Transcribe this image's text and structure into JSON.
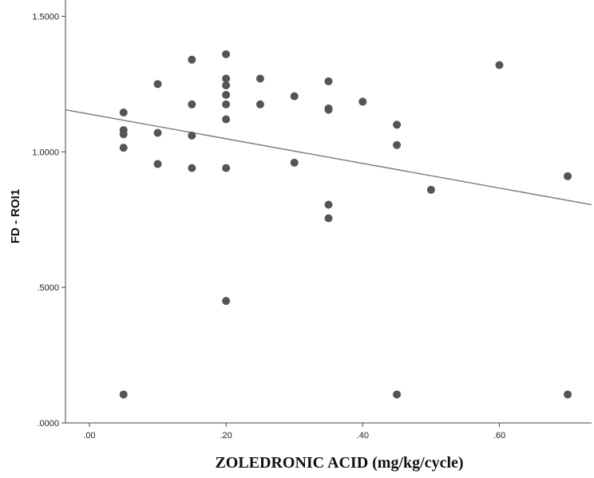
{
  "chart_data": {
    "type": "scatter",
    "title": "",
    "xlabel": "ZOLEDRONIC ACID (mg/kg/cycle)",
    "ylabel": "FD - ROI1",
    "xlim": [
      -0.035,
      0.735
    ],
    "ylim": [
      0.0,
      1.56
    ],
    "x_ticks": [
      0.0,
      0.2,
      0.4,
      0.6
    ],
    "x_tick_labels": [
      ".00",
      ".20",
      ".40",
      ".60"
    ],
    "y_ticks": [
      0.0,
      0.5,
      1.0,
      1.5
    ],
    "y_tick_labels": [
      ".0000",
      ".5000",
      "1.0000",
      "1.5000"
    ],
    "grid": false,
    "fit_line": {
      "x": [
        -0.035,
        0.735
      ],
      "y": [
        1.155,
        0.805
      ]
    },
    "points": [
      {
        "x": 0.05,
        "y": 1.145
      },
      {
        "x": 0.05,
        "y": 1.08
      },
      {
        "x": 0.05,
        "y": 1.065
      },
      {
        "x": 0.05,
        "y": 1.015
      },
      {
        "x": 0.05,
        "y": 0.105
      },
      {
        "x": 0.1,
        "y": 1.25
      },
      {
        "x": 0.1,
        "y": 1.07
      },
      {
        "x": 0.1,
        "y": 0.955
      },
      {
        "x": 0.15,
        "y": 1.34
      },
      {
        "x": 0.15,
        "y": 1.175
      },
      {
        "x": 0.15,
        "y": 1.06
      },
      {
        "x": 0.15,
        "y": 0.94
      },
      {
        "x": 0.2,
        "y": 1.36
      },
      {
        "x": 0.2,
        "y": 1.27
      },
      {
        "x": 0.2,
        "y": 1.245
      },
      {
        "x": 0.2,
        "y": 1.21
      },
      {
        "x": 0.2,
        "y": 1.175
      },
      {
        "x": 0.2,
        "y": 1.12
      },
      {
        "x": 0.2,
        "y": 0.94
      },
      {
        "x": 0.2,
        "y": 0.45
      },
      {
        "x": 0.25,
        "y": 1.27
      },
      {
        "x": 0.25,
        "y": 1.175
      },
      {
        "x": 0.3,
        "y": 1.205
      },
      {
        "x": 0.3,
        "y": 0.96
      },
      {
        "x": 0.35,
        "y": 1.26
      },
      {
        "x": 0.35,
        "y": 1.16
      },
      {
        "x": 0.35,
        "y": 1.155
      },
      {
        "x": 0.35,
        "y": 0.805
      },
      {
        "x": 0.35,
        "y": 0.755
      },
      {
        "x": 0.4,
        "y": 1.185
      },
      {
        "x": 0.45,
        "y": 1.1
      },
      {
        "x": 0.45,
        "y": 1.025
      },
      {
        "x": 0.45,
        "y": 0.105
      },
      {
        "x": 0.5,
        "y": 0.86
      },
      {
        "x": 0.6,
        "y": 1.32
      },
      {
        "x": 0.7,
        "y": 0.91
      },
      {
        "x": 0.7,
        "y": 0.105
      }
    ]
  }
}
